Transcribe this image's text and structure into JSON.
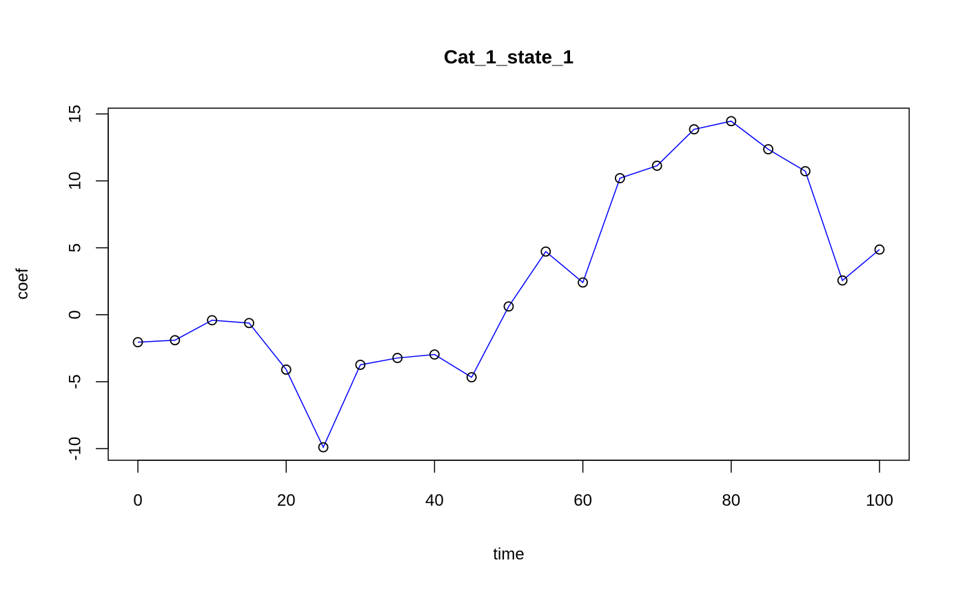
{
  "chart_data": {
    "type": "line",
    "title": "Cat_1_state_1",
    "xlabel": "time",
    "ylabel": "coef",
    "x": [
      0,
      5,
      10,
      15,
      20,
      25,
      30,
      35,
      40,
      45,
      50,
      55,
      60,
      65,
      70,
      75,
      80,
      85,
      90,
      95,
      100
    ],
    "series": [
      {
        "values": [
          -2.05,
          -1.9,
          -0.41,
          -0.62,
          -4.1,
          -9.9,
          -3.74,
          -3.23,
          -2.97,
          -4.67,
          0.62,
          4.72,
          2.41,
          10.2,
          11.13,
          13.85,
          14.46,
          12.36,
          10.72,
          2.56,
          4.87
        ]
      }
    ],
    "xlim": [
      -4,
      104
    ],
    "ylim": [
      -10.87,
      15.43
    ],
    "xticks": [
      0,
      20,
      40,
      60,
      80,
      100
    ],
    "yticks": [
      -10,
      -5,
      0,
      5,
      10,
      15
    ],
    "grid": false,
    "line_color": "#0000ff",
    "marker": "open-circle",
    "marker_color": "#000000"
  }
}
